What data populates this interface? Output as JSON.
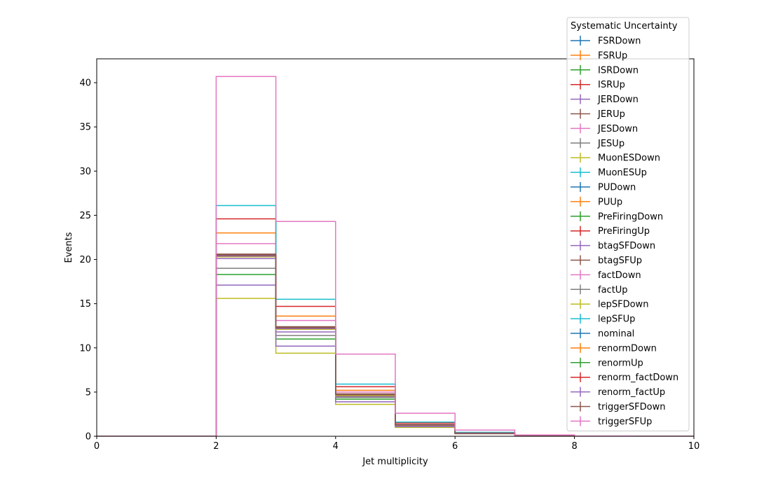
{
  "chart_data": {
    "type": "line",
    "step": "post",
    "title": "",
    "xlabel": "Jet multiplicity",
    "ylabel": "Events",
    "xlim": [
      0,
      10
    ],
    "ylim": [
      0,
      42.7
    ],
    "xticks": [
      "0",
      "2",
      "4",
      "6",
      "8",
      "10"
    ],
    "yticks": [
      "0",
      "5",
      "10",
      "15",
      "20",
      "25",
      "30",
      "35",
      "40"
    ],
    "grid": false,
    "legend": {
      "title": "Systematic Uncertainty",
      "placement": "top-right"
    },
    "bin_edges": [
      0,
      1,
      2,
      3,
      4,
      5,
      6,
      7,
      8,
      9,
      10
    ],
    "series": [
      {
        "name": "FSRDown",
        "color": "#1f77b4",
        "values": [
          0,
          0,
          20.4,
          12.2,
          4.7,
          1.3,
          0.35,
          0.08,
          0.02,
          0
        ]
      },
      {
        "name": "FSRUp",
        "color": "#ff7f0e",
        "values": [
          0,
          0,
          23.0,
          13.6,
          5.2,
          1.45,
          0.4,
          0.09,
          0.02,
          0
        ]
      },
      {
        "name": "ISRDown",
        "color": "#2ca02c",
        "values": [
          0,
          0,
          18.3,
          11.0,
          4.2,
          1.2,
          0.32,
          0.07,
          0.02,
          0
        ]
      },
      {
        "name": "ISRUp",
        "color": "#d62728",
        "values": [
          0,
          0,
          24.6,
          14.7,
          5.6,
          1.55,
          0.42,
          0.1,
          0.02,
          0
        ]
      },
      {
        "name": "JERDown",
        "color": "#9467bd",
        "values": [
          0,
          0,
          20.1,
          11.8,
          4.5,
          1.25,
          0.34,
          0.08,
          0.02,
          0
        ]
      },
      {
        "name": "JERUp",
        "color": "#8c564b",
        "values": [
          0,
          0,
          20.6,
          12.3,
          4.7,
          1.3,
          0.35,
          0.08,
          0.02,
          0
        ]
      },
      {
        "name": "JESDown",
        "color": "#e377c2",
        "values": [
          0,
          0,
          21.8,
          13.1,
          5.0,
          1.4,
          0.38,
          0.09,
          0.02,
          0
        ]
      },
      {
        "name": "JESUp",
        "color": "#7f7f7f",
        "values": [
          0,
          0,
          19.0,
          11.4,
          4.4,
          1.2,
          0.33,
          0.08,
          0.02,
          0
        ]
      },
      {
        "name": "MuonESDown",
        "color": "#bcbd22",
        "values": [
          0,
          0,
          15.6,
          9.4,
          3.6,
          1.0,
          0.28,
          0.06,
          0.01,
          0
        ]
      },
      {
        "name": "MuonESUp",
        "color": "#17becf",
        "values": [
          0,
          0,
          26.1,
          15.5,
          5.9,
          1.6,
          0.45,
          0.1,
          0.02,
          0
        ]
      },
      {
        "name": "PUDown",
        "color": "#1f77b4",
        "values": [
          0,
          0,
          20.5,
          12.3,
          4.7,
          1.3,
          0.35,
          0.08,
          0.02,
          0
        ]
      },
      {
        "name": "PUUp",
        "color": "#ff7f0e",
        "values": [
          0,
          0,
          20.3,
          12.1,
          4.6,
          1.28,
          0.35,
          0.08,
          0.02,
          0
        ]
      },
      {
        "name": "PreFiringDown",
        "color": "#2ca02c",
        "values": [
          0,
          0,
          20.5,
          12.2,
          4.7,
          1.3,
          0.35,
          0.08,
          0.02,
          0
        ]
      },
      {
        "name": "PreFiringUp",
        "color": "#d62728",
        "values": [
          0,
          0,
          20.4,
          12.2,
          4.7,
          1.3,
          0.35,
          0.08,
          0.02,
          0
        ]
      },
      {
        "name": "btagSFDown",
        "color": "#9467bd",
        "values": [
          0,
          0,
          17.1,
          10.2,
          3.9,
          1.1,
          0.3,
          0.07,
          0.02,
          0
        ]
      },
      {
        "name": "btagSFUp",
        "color": "#8c564b",
        "values": [
          0,
          0,
          20.6,
          12.4,
          4.8,
          1.32,
          0.36,
          0.08,
          0.02,
          0
        ]
      },
      {
        "name": "factDown",
        "color": "#e377c2",
        "values": [
          0,
          0,
          20.4,
          12.2,
          4.7,
          1.3,
          0.35,
          0.08,
          0.02,
          0
        ]
      },
      {
        "name": "factUp",
        "color": "#7f7f7f",
        "values": [
          0,
          0,
          20.4,
          12.2,
          4.7,
          1.3,
          0.35,
          0.08,
          0.02,
          0
        ]
      },
      {
        "name": "lepSFDown",
        "color": "#bcbd22",
        "values": [
          0,
          0,
          20.3,
          12.1,
          4.6,
          1.28,
          0.35,
          0.08,
          0.02,
          0
        ]
      },
      {
        "name": "lepSFUp",
        "color": "#17becf",
        "values": [
          0,
          0,
          20.5,
          12.3,
          4.7,
          1.3,
          0.35,
          0.08,
          0.02,
          0
        ]
      },
      {
        "name": "nominal",
        "color": "#1f77b4",
        "values": [
          0,
          0,
          20.4,
          12.2,
          4.7,
          1.3,
          0.35,
          0.08,
          0.02,
          0
        ]
      },
      {
        "name": "renormDown",
        "color": "#ff7f0e",
        "values": [
          0,
          0,
          20.4,
          12.2,
          4.7,
          1.3,
          0.35,
          0.08,
          0.02,
          0
        ]
      },
      {
        "name": "renormUp",
        "color": "#2ca02c",
        "values": [
          0,
          0,
          20.4,
          12.2,
          4.7,
          1.3,
          0.35,
          0.08,
          0.02,
          0
        ]
      },
      {
        "name": "renorm_factDown",
        "color": "#d62728",
        "values": [
          0,
          0,
          20.4,
          12.2,
          4.7,
          1.3,
          0.35,
          0.08,
          0.02,
          0
        ]
      },
      {
        "name": "renorm_factUp",
        "color": "#9467bd",
        "values": [
          0,
          0,
          20.4,
          12.2,
          4.7,
          1.3,
          0.35,
          0.08,
          0.02,
          0
        ]
      },
      {
        "name": "triggerSFDown",
        "color": "#8c564b",
        "values": [
          0,
          0,
          20.5,
          12.3,
          4.7,
          1.3,
          0.35,
          0.08,
          0.02,
          0
        ]
      },
      {
        "name": "triggerSFUp",
        "color": "#e377c2",
        "values": [
          0,
          0,
          40.7,
          24.3,
          9.3,
          2.6,
          0.7,
          0.15,
          0.03,
          0
        ]
      }
    ]
  }
}
